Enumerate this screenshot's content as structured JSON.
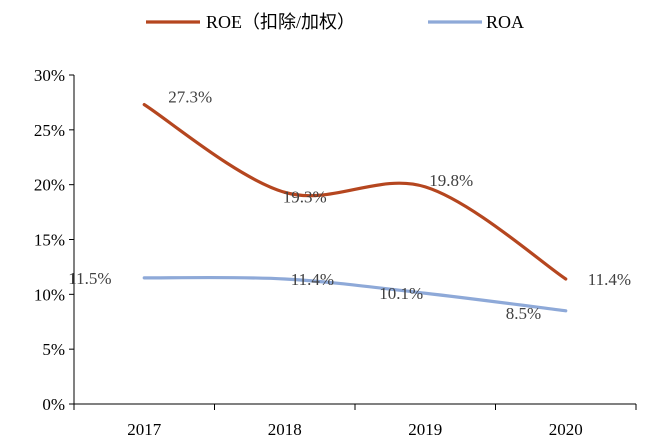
{
  "chart_data": {
    "type": "line",
    "title": "",
    "xlabel": "",
    "ylabel": "",
    "categories": [
      "2017",
      "2018",
      "2019",
      "2020"
    ],
    "ylim": [
      0,
      30
    ],
    "yticks": [
      0,
      5,
      10,
      15,
      20,
      25,
      30
    ],
    "ytick_labels": [
      "0%",
      "5%",
      "10%",
      "15%",
      "20%",
      "25%",
      "30%"
    ],
    "grid": false,
    "legend": "top",
    "smooth": true,
    "series": [
      {
        "name": "ROE（扣除/加权）",
        "color": "#b5461f",
        "values": [
          27.3,
          19.3,
          19.8,
          11.4
        ],
        "labels": [
          "27.3%",
          "19.3%",
          "19.8%",
          "11.4%"
        ]
      },
      {
        "name": "ROA",
        "color": "#8ea9d8",
        "values": [
          11.5,
          11.4,
          10.1,
          8.5
        ],
        "labels": [
          "11.5%",
          "11.4%",
          "10.1%",
          "8.5%"
        ]
      }
    ]
  }
}
